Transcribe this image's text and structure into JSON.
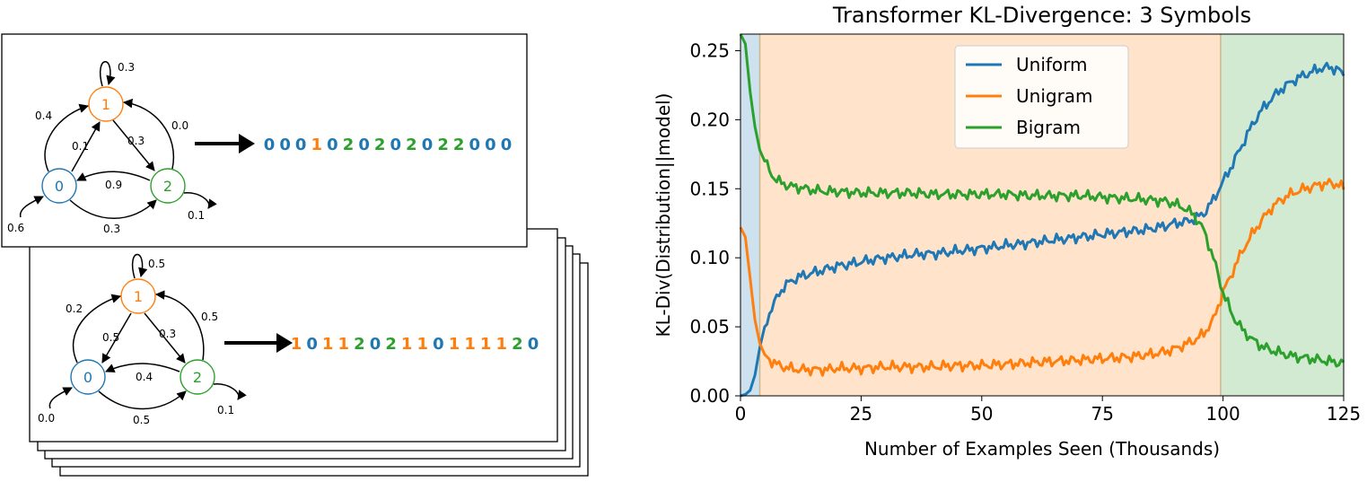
{
  "colors": {
    "blue": "#1f77b4",
    "orange": "#ff7f0e",
    "green": "#2ca02c",
    "text": "#000000"
  },
  "diagram": {
    "front": {
      "nodes": [
        "0",
        "1",
        "2"
      ],
      "edge_labels": {
        "self_0": "0.6",
        "self_1": "0.3",
        "self_2": "0.1",
        "zero_to_one": "0.4",
        "one_to_zero": "0.1",
        "one_to_two": "0.3",
        "two_to_one": "0.0",
        "two_to_zero": "0.9",
        "zero_to_two": "0.3"
      },
      "sequence": [
        "0",
        "0",
        "0",
        "1",
        "0",
        "2",
        "0",
        "2",
        "0",
        "2",
        "0",
        "2",
        "2",
        "0",
        "0",
        "0"
      ]
    },
    "back": {
      "nodes": [
        "0",
        "1",
        "2"
      ],
      "edge_labels": {
        "self_0": "0.0",
        "self_1": "0.5",
        "self_2": "0.1",
        "zero_to_one": "0.2",
        "one_to_zero": "0.5",
        "one_to_two": "0.3",
        "two_to_one": "0.5",
        "two_to_zero": "0.4",
        "zero_to_two": "0.5"
      },
      "sequence": [
        "1",
        "0",
        "1",
        "1",
        "2",
        "0",
        "2",
        "1",
        "1",
        "0",
        "1",
        "1",
        "1",
        "1",
        "2",
        "0"
      ]
    }
  },
  "chart_data": {
    "type": "line",
    "title": "Transformer KL-Divergence: 3 Symbols",
    "xlabel": "Number of Examples Seen (Thousands)",
    "ylabel": "KL-Div(Distribution||model)",
    "xlim": [
      0,
      125
    ],
    "ylim": [
      0,
      0.262
    ],
    "xticks": [
      "0",
      "25",
      "50",
      "75",
      "100",
      "125"
    ],
    "xtick_values": [
      0,
      25,
      50,
      75,
      100,
      125
    ],
    "yticks": [
      "0.00",
      "0.05",
      "0.10",
      "0.15",
      "0.20",
      "0.25"
    ],
    "ytick_values": [
      0,
      0.05,
      0.1,
      0.15,
      0.2,
      0.25
    ],
    "legend_placement": "top-center",
    "grid": false,
    "shaded_regions": [
      {
        "x_start": 0,
        "x_end": 4,
        "color": "#1f77b4"
      },
      {
        "x_start": 4,
        "x_end": 99.5,
        "color": "#ff7f0e"
      },
      {
        "x_start": 99.5,
        "x_end": 125,
        "color": "#2ca02c"
      }
    ],
    "series": [
      {
        "name": "Uniform",
        "color": "#1f77b4",
        "points": [
          [
            0,
            0.0
          ],
          [
            1,
            0.001
          ],
          [
            2,
            0.004
          ],
          [
            3,
            0.015
          ],
          [
            4,
            0.035
          ],
          [
            5,
            0.05
          ],
          [
            6,
            0.06
          ],
          [
            7,
            0.067
          ],
          [
            8,
            0.074
          ],
          [
            9,
            0.079
          ],
          [
            10,
            0.082
          ],
          [
            12,
            0.086
          ],
          [
            14,
            0.088
          ],
          [
            16,
            0.09
          ],
          [
            18,
            0.092
          ],
          [
            20,
            0.094
          ],
          [
            22,
            0.095
          ],
          [
            25,
            0.097
          ],
          [
            28,
            0.099
          ],
          [
            30,
            0.1
          ],
          [
            33,
            0.101
          ],
          [
            35,
            0.102
          ],
          [
            38,
            0.103
          ],
          [
            40,
            0.103
          ],
          [
            43,
            0.104
          ],
          [
            45,
            0.105
          ],
          [
            48,
            0.106
          ],
          [
            50,
            0.107
          ],
          [
            53,
            0.108
          ],
          [
            55,
            0.109
          ],
          [
            58,
            0.11
          ],
          [
            60,
            0.111
          ],
          [
            63,
            0.112
          ],
          [
            65,
            0.113
          ],
          [
            68,
            0.114
          ],
          [
            70,
            0.115
          ],
          [
            73,
            0.116
          ],
          [
            75,
            0.117
          ],
          [
            78,
            0.118
          ],
          [
            80,
            0.119
          ],
          [
            83,
            0.12
          ],
          [
            85,
            0.121
          ],
          [
            88,
            0.123
          ],
          [
            90,
            0.125
          ],
          [
            92,
            0.126
          ],
          [
            94,
            0.128
          ],
          [
            96,
            0.132
          ],
          [
            98,
            0.142
          ],
          [
            100,
            0.155
          ],
          [
            102,
            0.168
          ],
          [
            104,
            0.182
          ],
          [
            106,
            0.196
          ],
          [
            108,
            0.207
          ],
          [
            110,
            0.215
          ],
          [
            112,
            0.222
          ],
          [
            114,
            0.227
          ],
          [
            116,
            0.231
          ],
          [
            118,
            0.234
          ],
          [
            120,
            0.237
          ],
          [
            122,
            0.238
          ],
          [
            124,
            0.236
          ],
          [
            125,
            0.232
          ]
        ]
      },
      {
        "name": "Unigram",
        "color": "#ff7f0e",
        "points": [
          [
            0,
            0.122
          ],
          [
            1,
            0.115
          ],
          [
            2,
            0.085
          ],
          [
            3,
            0.055
          ],
          [
            4,
            0.038
          ],
          [
            5,
            0.03
          ],
          [
            6,
            0.026
          ],
          [
            7,
            0.024
          ],
          [
            8,
            0.022
          ],
          [
            10,
            0.02
          ],
          [
            12,
            0.019
          ],
          [
            15,
            0.019
          ],
          [
            18,
            0.019
          ],
          [
            20,
            0.02
          ],
          [
            25,
            0.02
          ],
          [
            30,
            0.021
          ],
          [
            35,
            0.021
          ],
          [
            40,
            0.021
          ],
          [
            45,
            0.022
          ],
          [
            50,
            0.022
          ],
          [
            55,
            0.023
          ],
          [
            60,
            0.024
          ],
          [
            65,
            0.025
          ],
          [
            70,
            0.026
          ],
          [
            75,
            0.027
          ],
          [
            80,
            0.028
          ],
          [
            85,
            0.03
          ],
          [
            88,
            0.032
          ],
          [
            90,
            0.034
          ],
          [
            92,
            0.037
          ],
          [
            94,
            0.04
          ],
          [
            96,
            0.045
          ],
          [
            98,
            0.055
          ],
          [
            100,
            0.075
          ],
          [
            102,
            0.09
          ],
          [
            104,
            0.105
          ],
          [
            106,
            0.117
          ],
          [
            108,
            0.127
          ],
          [
            110,
            0.136
          ],
          [
            112,
            0.142
          ],
          [
            114,
            0.146
          ],
          [
            116,
            0.149
          ],
          [
            118,
            0.151
          ],
          [
            120,
            0.153
          ],
          [
            122,
            0.154
          ],
          [
            124,
            0.153
          ],
          [
            125,
            0.15
          ]
        ]
      },
      {
        "name": "Bigram",
        "color": "#2ca02c",
        "points": [
          [
            0,
            0.262
          ],
          [
            1,
            0.255
          ],
          [
            2,
            0.22
          ],
          [
            3,
            0.195
          ],
          [
            4,
            0.178
          ],
          [
            5,
            0.17
          ],
          [
            6,
            0.163
          ],
          [
            7,
            0.158
          ],
          [
            8,
            0.155
          ],
          [
            10,
            0.152
          ],
          [
            12,
            0.151
          ],
          [
            15,
            0.149
          ],
          [
            18,
            0.148
          ],
          [
            20,
            0.148
          ],
          [
            25,
            0.147
          ],
          [
            30,
            0.147
          ],
          [
            35,
            0.147
          ],
          [
            40,
            0.146
          ],
          [
            45,
            0.146
          ],
          [
            50,
            0.146
          ],
          [
            55,
            0.146
          ],
          [
            60,
            0.145
          ],
          [
            65,
            0.145
          ],
          [
            70,
            0.145
          ],
          [
            75,
            0.144
          ],
          [
            80,
            0.143
          ],
          [
            85,
            0.142
          ],
          [
            88,
            0.141
          ],
          [
            90,
            0.139
          ],
          [
            92,
            0.136
          ],
          [
            94,
            0.131
          ],
          [
            96,
            0.12
          ],
          [
            98,
            0.1
          ],
          [
            100,
            0.075
          ],
          [
            102,
            0.058
          ],
          [
            104,
            0.048
          ],
          [
            106,
            0.041
          ],
          [
            108,
            0.036
          ],
          [
            110,
            0.033
          ],
          [
            112,
            0.031
          ],
          [
            114,
            0.029
          ],
          [
            116,
            0.028
          ],
          [
            118,
            0.027
          ],
          [
            120,
            0.026
          ],
          [
            122,
            0.025
          ],
          [
            124,
            0.024
          ],
          [
            125,
            0.024
          ]
        ]
      }
    ]
  }
}
